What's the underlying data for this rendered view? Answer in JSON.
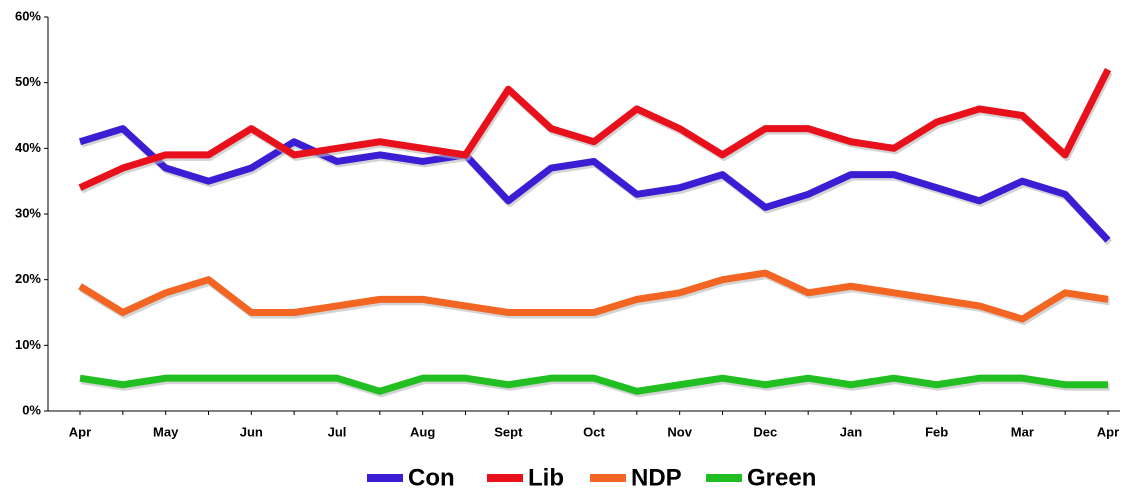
{
  "chart_data": {
    "type": "line",
    "categories": [
      "Apr",
      null,
      "May",
      null,
      "Jun",
      null,
      "Jul",
      null,
      "Aug",
      null,
      "Sept",
      null,
      "Oct",
      null,
      "Nov",
      null,
      "Dec",
      null,
      "Jan",
      null,
      "Feb",
      null,
      "Mar",
      null,
      "Apr"
    ],
    "series": [
      {
        "name": "Con",
        "color": "#3a1ed4",
        "values": [
          41,
          43,
          37,
          35,
          37,
          41,
          38,
          39,
          38,
          39,
          32,
          37,
          38,
          33,
          34,
          36,
          31,
          33,
          36,
          36,
          34,
          32,
          35,
          33,
          26
        ]
      },
      {
        "name": "Lib",
        "color": "#e8101a",
        "values": [
          34,
          37,
          39,
          39,
          43,
          39,
          40,
          41,
          40,
          39,
          49,
          43,
          41,
          46,
          43,
          39,
          43,
          43,
          41,
          40,
          44,
          46,
          45,
          39,
          52
        ]
      },
      {
        "name": "NDP",
        "color": "#f26522",
        "values": [
          19,
          15,
          18,
          20,
          15,
          15,
          16,
          17,
          17,
          16,
          15,
          15,
          15,
          17,
          18,
          20,
          21,
          18,
          19,
          18,
          17,
          16,
          14,
          18,
          17
        ]
      },
      {
        "name": "Green",
        "color": "#22bf22",
        "values": [
          5,
          4,
          5,
          5,
          5,
          5,
          5,
          3,
          5,
          5,
          4,
          5,
          5,
          3,
          4,
          5,
          4,
          5,
          4,
          5,
          4,
          5,
          5,
          4,
          4
        ]
      }
    ],
    "ylim": [
      0,
      60
    ],
    "yticks": [
      {
        "value": 0,
        "label": "0%"
      },
      {
        "value": 10,
        "label": "10%"
      },
      {
        "value": 20,
        "label": "20%"
      },
      {
        "value": 30,
        "label": "30%"
      },
      {
        "value": 40,
        "label": "40%"
      },
      {
        "value": 50,
        "label": "50%"
      },
      {
        "value": 60,
        "label": "60%"
      }
    ],
    "legend": "bottom"
  }
}
